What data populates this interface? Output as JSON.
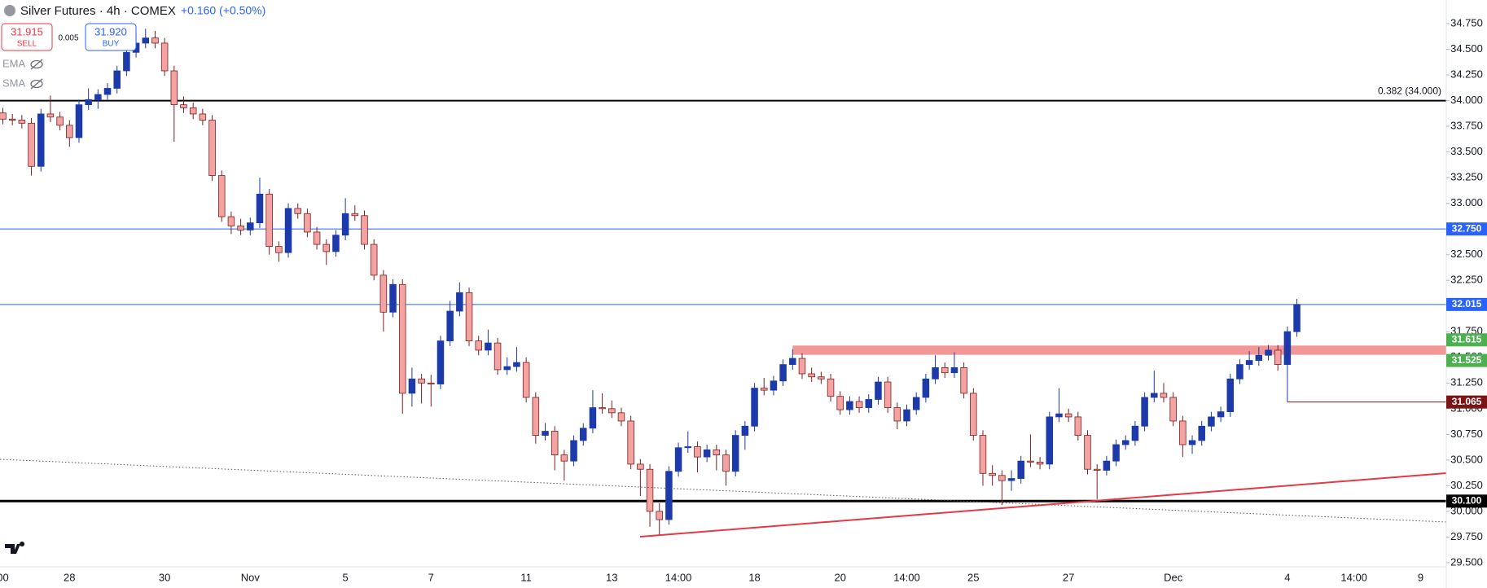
{
  "toolbar": {
    "title": "Silver Futures · 4h · COMEX",
    "change": "+0.160 (+0.50%)",
    "sell_price": "31.915",
    "sell": "SELL",
    "spread": "0.005",
    "buy_price": "31.920",
    "buy": "BUY",
    "indicators": [
      "EMA",
      "SMA"
    ]
  },
  "chart_data": {
    "type": "candlestick",
    "up_color": "#1c3aa9",
    "down_color": "#f4a3a3",
    "down_border": "#7a1f1f",
    "ylim": [
      29.46,
      34.98
    ],
    "yticks": [
      {
        "value": 29.5,
        "label": "29.500"
      },
      {
        "value": 29.75,
        "label": "29.750"
      },
      {
        "value": 30,
        "label": "30.000"
      },
      {
        "value": 30.25,
        "label": "30.250"
      },
      {
        "value": 30.5,
        "label": "30.500"
      },
      {
        "value": 30.75,
        "label": "30.750"
      },
      {
        "value": 31,
        "label": "31.000"
      },
      {
        "value": 31.25,
        "label": "31.250"
      },
      {
        "value": 31.5,
        "label": "31.500"
      },
      {
        "value": 31.75,
        "label": "31.750"
      },
      {
        "value": 32,
        "label": "32.000"
      },
      {
        "value": 32.25,
        "label": "32.250"
      },
      {
        "value": 32.5,
        "label": "32.500"
      },
      {
        "value": 32.75,
        "label": "32.750"
      },
      {
        "value": 33,
        "label": "33.000"
      },
      {
        "value": 33.25,
        "label": "33.250"
      },
      {
        "value": 33.5,
        "label": "33.500"
      },
      {
        "value": 33.75,
        "label": "33.750"
      },
      {
        "value": 34,
        "label": "34.000"
      },
      {
        "value": 34.25,
        "label": "34.250"
      },
      {
        "value": 34.5,
        "label": "34.500"
      },
      {
        "value": 34.75,
        "label": "34.750"
      }
    ],
    "categories": [
      "00",
      null,
      null,
      null,
      null,
      null,
      null,
      "28",
      null,
      null,
      null,
      null,
      null,
      null,
      null,
      null,
      null,
      "30",
      null,
      null,
      null,
      null,
      null,
      null,
      null,
      null,
      "Nov",
      null,
      null,
      null,
      null,
      null,
      null,
      null,
      null,
      null,
      "5",
      null,
      null,
      null,
      null,
      null,
      null,
      null,
      null,
      "7",
      null,
      null,
      null,
      null,
      null,
      null,
      null,
      null,
      null,
      "11",
      null,
      null,
      null,
      null,
      null,
      null,
      null,
      null,
      "13",
      null,
      null,
      null,
      null,
      null,
      null,
      "14:00",
      null,
      null,
      null,
      null,
      null,
      null,
      null,
      "18",
      null,
      null,
      null,
      null,
      null,
      null,
      null,
      null,
      "20",
      null,
      null,
      null,
      null,
      null,
      null,
      "14:00",
      null,
      null,
      null,
      null,
      null,
      null,
      "25",
      null,
      null,
      null,
      null,
      null,
      null,
      null,
      null,
      null,
      "27",
      null,
      null,
      null,
      null,
      null,
      null,
      null,
      null,
      null,
      null,
      "Dec",
      null,
      null,
      null,
      null,
      null,
      null,
      null,
      null,
      null,
      null,
      null,
      "4",
      null,
      null,
      null,
      null,
      null,
      null,
      "14:00",
      null,
      null,
      null,
      null,
      null,
      null,
      "9",
      null,
      null
    ],
    "candles": [
      [
        33.88,
        33.93,
        33.77,
        33.82
      ],
      [
        33.82,
        33.87,
        33.76,
        33.81
      ],
      [
        33.81,
        33.86,
        33.73,
        33.78
      ],
      [
        33.78,
        33.83,
        33.27,
        33.36
      ],
      [
        33.36,
        33.92,
        33.31,
        33.87
      ],
      [
        33.87,
        34.05,
        33.79,
        33.84
      ],
      [
        33.84,
        33.89,
        33.71,
        33.76
      ],
      [
        33.76,
        33.81,
        33.55,
        33.64
      ],
      [
        33.64,
        34.01,
        33.59,
        33.96
      ],
      [
        33.96,
        34.12,
        33.91,
        34.01
      ],
      [
        34.01,
        34.11,
        33.92,
        34.06
      ],
      [
        34.06,
        34.17,
        34.01,
        34.12
      ],
      [
        34.12,
        34.34,
        34.07,
        34.29
      ],
      [
        34.29,
        34.52,
        34.24,
        34.47
      ],
      [
        34.47,
        34.66,
        34.42,
        34.56
      ],
      [
        34.56,
        34.7,
        34.51,
        34.61
      ],
      [
        34.61,
        34.68,
        34.51,
        34.56
      ],
      [
        34.56,
        34.61,
        34.24,
        34.29
      ],
      [
        34.29,
        34.34,
        33.6,
        33.96
      ],
      [
        33.96,
        34.04,
        33.88,
        33.93
      ],
      [
        33.93,
        33.98,
        33.82,
        33.87
      ],
      [
        33.87,
        33.92,
        33.76,
        33.81
      ],
      [
        33.81,
        33.86,
        33.22,
        33.27
      ],
      [
        33.27,
        33.32,
        32.82,
        32.87
      ],
      [
        32.87,
        32.92,
        32.7,
        32.78
      ],
      [
        32.78,
        32.85,
        32.69,
        32.74
      ],
      [
        32.74,
        32.86,
        32.69,
        32.81
      ],
      [
        32.81,
        33.25,
        32.76,
        33.09
      ],
      [
        33.09,
        33.14,
        32.5,
        32.58
      ],
      [
        32.58,
        32.63,
        32.43,
        32.52
      ],
      [
        32.52,
        33.0,
        32.47,
        32.95
      ],
      [
        32.95,
        33.0,
        32.85,
        32.9
      ],
      [
        32.9,
        32.95,
        32.67,
        32.72
      ],
      [
        32.72,
        32.77,
        32.55,
        32.6
      ],
      [
        32.6,
        32.65,
        32.4,
        32.53
      ],
      [
        32.53,
        32.74,
        32.48,
        32.69
      ],
      [
        32.69,
        33.05,
        32.64,
        32.9
      ],
      [
        32.9,
        32.98,
        32.83,
        32.88
      ],
      [
        32.88,
        32.93,
        32.55,
        32.6
      ],
      [
        32.6,
        32.65,
        32.25,
        32.3
      ],
      [
        32.3,
        32.35,
        31.75,
        31.94
      ],
      [
        31.94,
        32.26,
        31.89,
        32.21
      ],
      [
        32.21,
        32.26,
        30.95,
        31.15
      ],
      [
        31.15,
        31.4,
        31.02,
        31.29
      ],
      [
        31.29,
        31.34,
        31.05,
        31.25
      ],
      [
        31.25,
        31.33,
        31.02,
        31.24
      ],
      [
        31.24,
        31.71,
        31.19,
        31.66
      ],
      [
        31.66,
        32.05,
        31.61,
        31.95
      ],
      [
        31.95,
        32.23,
        31.9,
        32.13
      ],
      [
        32.13,
        32.18,
        31.61,
        31.66
      ],
      [
        31.66,
        31.71,
        31.52,
        31.57
      ],
      [
        31.57,
        31.77,
        31.52,
        31.64
      ],
      [
        31.64,
        31.69,
        31.33,
        31.38
      ],
      [
        31.38,
        31.5,
        31.33,
        31.41
      ],
      [
        31.41,
        31.6,
        31.36,
        31.45
      ],
      [
        31.45,
        31.5,
        31.06,
        31.11
      ],
      [
        31.11,
        31.16,
        30.66,
        30.74
      ],
      [
        30.74,
        30.86,
        30.69,
        30.78
      ],
      [
        30.78,
        30.83,
        30.4,
        30.55
      ],
      [
        30.55,
        30.6,
        30.3,
        30.49
      ],
      [
        30.49,
        30.74,
        30.44,
        30.69
      ],
      [
        30.69,
        30.86,
        30.64,
        30.81
      ],
      [
        30.81,
        31.18,
        30.76,
        31.01
      ],
      [
        31.01,
        31.15,
        30.95,
        31.0
      ],
      [
        31.0,
        31.08,
        30.91,
        30.96
      ],
      [
        30.96,
        31.01,
        30.83,
        30.88
      ],
      [
        30.88,
        30.93,
        30.41,
        30.46
      ],
      [
        30.46,
        30.51,
        30.15,
        30.41
      ],
      [
        30.41,
        30.46,
        29.85,
        30.0
      ],
      [
        30.0,
        30.08,
        29.77,
        29.92
      ],
      [
        29.92,
        30.44,
        29.87,
        30.39
      ],
      [
        30.39,
        30.67,
        30.34,
        30.62
      ],
      [
        30.62,
        30.78,
        30.57,
        30.63
      ],
      [
        30.63,
        30.68,
        30.38,
        30.53
      ],
      [
        30.53,
        30.65,
        30.48,
        30.6
      ],
      [
        30.6,
        30.65,
        30.4,
        30.55
      ],
      [
        30.55,
        30.6,
        30.25,
        30.39
      ],
      [
        30.39,
        30.79,
        30.34,
        30.74
      ],
      [
        30.74,
        30.88,
        30.6,
        30.83
      ],
      [
        30.83,
        31.25,
        30.78,
        31.2
      ],
      [
        31.2,
        31.3,
        31.13,
        31.18
      ],
      [
        31.18,
        31.32,
        31.13,
        31.27
      ],
      [
        31.27,
        31.48,
        31.22,
        31.43
      ],
      [
        31.43,
        31.58,
        31.38,
        31.49
      ],
      [
        31.49,
        31.54,
        31.29,
        31.34
      ],
      [
        31.34,
        31.4,
        31.26,
        31.31
      ],
      [
        31.31,
        31.36,
        31.24,
        31.29
      ],
      [
        31.29,
        31.34,
        31.07,
        31.12
      ],
      [
        31.12,
        31.17,
        30.94,
        30.99
      ],
      [
        30.99,
        31.12,
        30.94,
        31.07
      ],
      [
        31.07,
        31.12,
        30.96,
        31.01
      ],
      [
        31.01,
        31.14,
        30.96,
        31.09
      ],
      [
        31.09,
        31.31,
        31.04,
        31.26
      ],
      [
        31.26,
        31.31,
        30.96,
        31.01
      ],
      [
        31.01,
        31.06,
        30.8,
        30.88
      ],
      [
        30.88,
        31.04,
        30.83,
        30.99
      ],
      [
        30.99,
        31.16,
        30.94,
        31.11
      ],
      [
        31.11,
        31.34,
        31.06,
        31.29
      ],
      [
        31.29,
        31.52,
        31.24,
        31.4
      ],
      [
        31.4,
        31.45,
        31.3,
        31.35
      ],
      [
        31.35,
        31.55,
        31.3,
        31.4
      ],
      [
        31.4,
        31.45,
        31.1,
        31.15
      ],
      [
        31.15,
        31.2,
        30.69,
        30.74
      ],
      [
        30.74,
        30.79,
        30.25,
        30.37
      ],
      [
        30.37,
        30.45,
        30.25,
        30.35
      ],
      [
        30.35,
        30.4,
        30.06,
        30.3
      ],
      [
        30.3,
        30.4,
        30.2,
        30.32
      ],
      [
        30.32,
        30.54,
        30.27,
        30.49
      ],
      [
        30.49,
        30.75,
        30.43,
        30.48
      ],
      [
        30.48,
        30.53,
        30.41,
        30.46
      ],
      [
        30.46,
        30.97,
        30.41,
        30.92
      ],
      [
        30.92,
        31.2,
        30.87,
        30.95
      ],
      [
        30.95,
        31.0,
        30.87,
        30.92
      ],
      [
        30.92,
        30.97,
        30.69,
        30.74
      ],
      [
        30.74,
        30.79,
        30.36,
        30.41
      ],
      [
        30.41,
        30.46,
        30.12,
        30.4
      ],
      [
        30.4,
        30.54,
        30.35,
        30.49
      ],
      [
        30.49,
        30.7,
        30.44,
        30.65
      ],
      [
        30.65,
        30.74,
        30.6,
        30.69
      ],
      [
        30.69,
        30.88,
        30.64,
        30.83
      ],
      [
        30.83,
        31.16,
        30.78,
        31.11
      ],
      [
        31.11,
        31.37,
        31.06,
        31.15
      ],
      [
        31.15,
        31.25,
        31.06,
        31.11
      ],
      [
        31.11,
        31.16,
        30.83,
        30.88
      ],
      [
        30.88,
        30.93,
        30.53,
        30.65
      ],
      [
        30.65,
        30.74,
        30.56,
        30.69
      ],
      [
        30.69,
        30.88,
        30.64,
        30.83
      ],
      [
        30.83,
        30.97,
        30.78,
        30.92
      ],
      [
        30.92,
        31.02,
        30.87,
        30.97
      ],
      [
        30.97,
        31.34,
        30.92,
        31.29
      ],
      [
        31.29,
        31.48,
        31.24,
        31.43
      ],
      [
        31.43,
        31.56,
        31.38,
        31.47
      ],
      [
        31.47,
        31.6,
        31.42,
        31.52
      ],
      [
        31.52,
        31.62,
        31.47,
        31.57
      ],
      [
        31.57,
        31.62,
        31.37,
        31.43
      ],
      [
        31.43,
        31.8,
        31.065,
        31.75
      ],
      [
        31.75,
        32.07,
        31.7,
        32.015
      ],
      null,
      null,
      null,
      null,
      null,
      null,
      null,
      null,
      null,
      null,
      null,
      null,
      null,
      null,
      null
    ],
    "price_lines": [
      {
        "value": 34,
        "label": "0.382 (34.000)",
        "color": "#000000"
      },
      {
        "value": 32.75,
        "value_label": "32.750",
        "color": "#2962ff"
      },
      {
        "value": 32.015,
        "value_label": "32.015",
        "color": "#2962ff"
      },
      {
        "value": 31.065,
        "value_label": "31.065",
        "color": "#7b1515"
      },
      {
        "value": 30.1,
        "value_label": "30.100",
        "color": "#000000"
      }
    ],
    "zone": {
      "high": 31.615,
      "low": 31.525,
      "high_label": "31.615",
      "low_label": "31.525",
      "color": "#f08c8c",
      "label_color": "#4caf50"
    }
  }
}
